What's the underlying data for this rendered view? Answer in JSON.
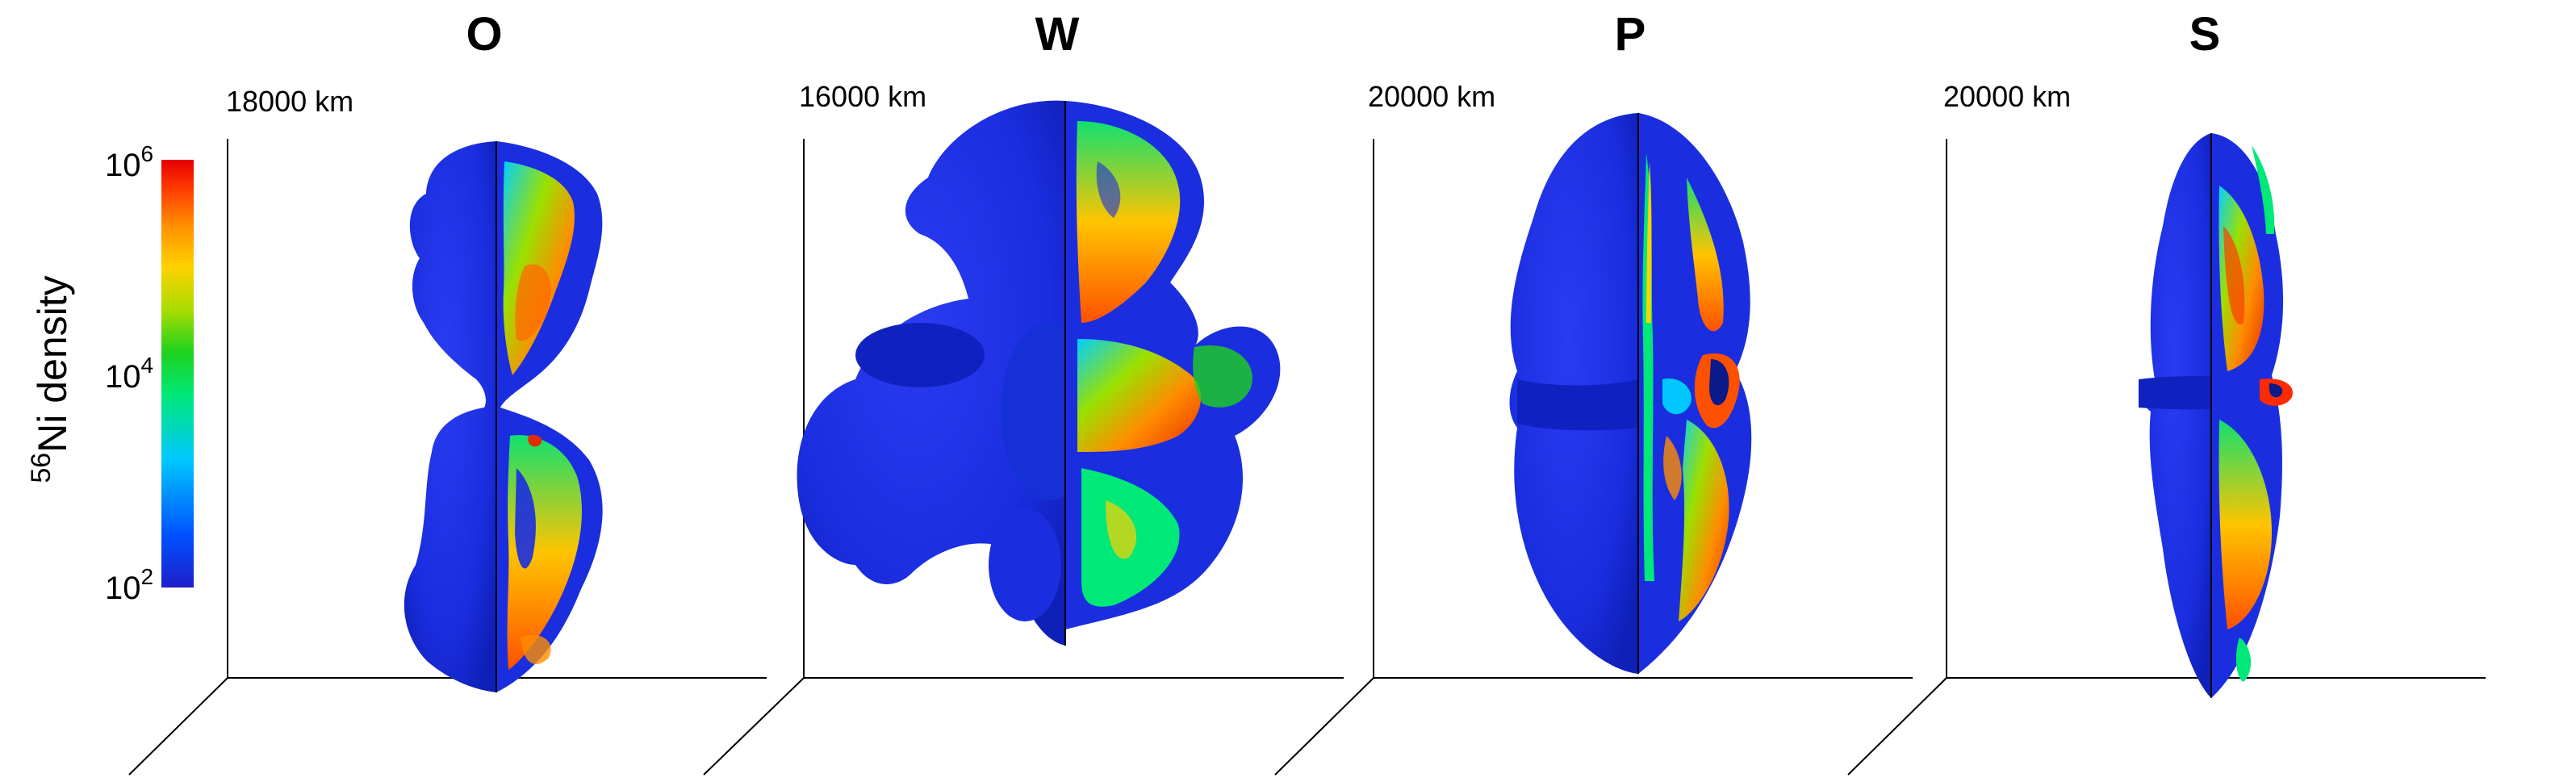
{
  "colors": {
    "surface": "#1a2ee0",
    "surface_dark": "#0a1aa8",
    "axis": "#000000",
    "colorbar": [
      "#1e1ec8",
      "#0050ff",
      "#00c8ff",
      "#00e878",
      "#1ed21e",
      "#aadc00",
      "#ffd200",
      "#ff8c00",
      "#ff3c00",
      "#e60000"
    ]
  },
  "colorbar": {
    "label_sup": "56",
    "label_main": "Ni density",
    "ticks": [
      {
        "base": "10",
        "exp": "6"
      },
      {
        "base": "10",
        "exp": "4"
      },
      {
        "base": "10",
        "exp": "2"
      }
    ],
    "log_range": [
      2,
      6
    ]
  },
  "panels": [
    {
      "title": "O",
      "scale": "18000 km"
    },
    {
      "title": "W",
      "scale": "16000 km"
    },
    {
      "title": "P",
      "scale": "20000 km"
    },
    {
      "title": "S",
      "scale": "20000 km"
    }
  ]
}
